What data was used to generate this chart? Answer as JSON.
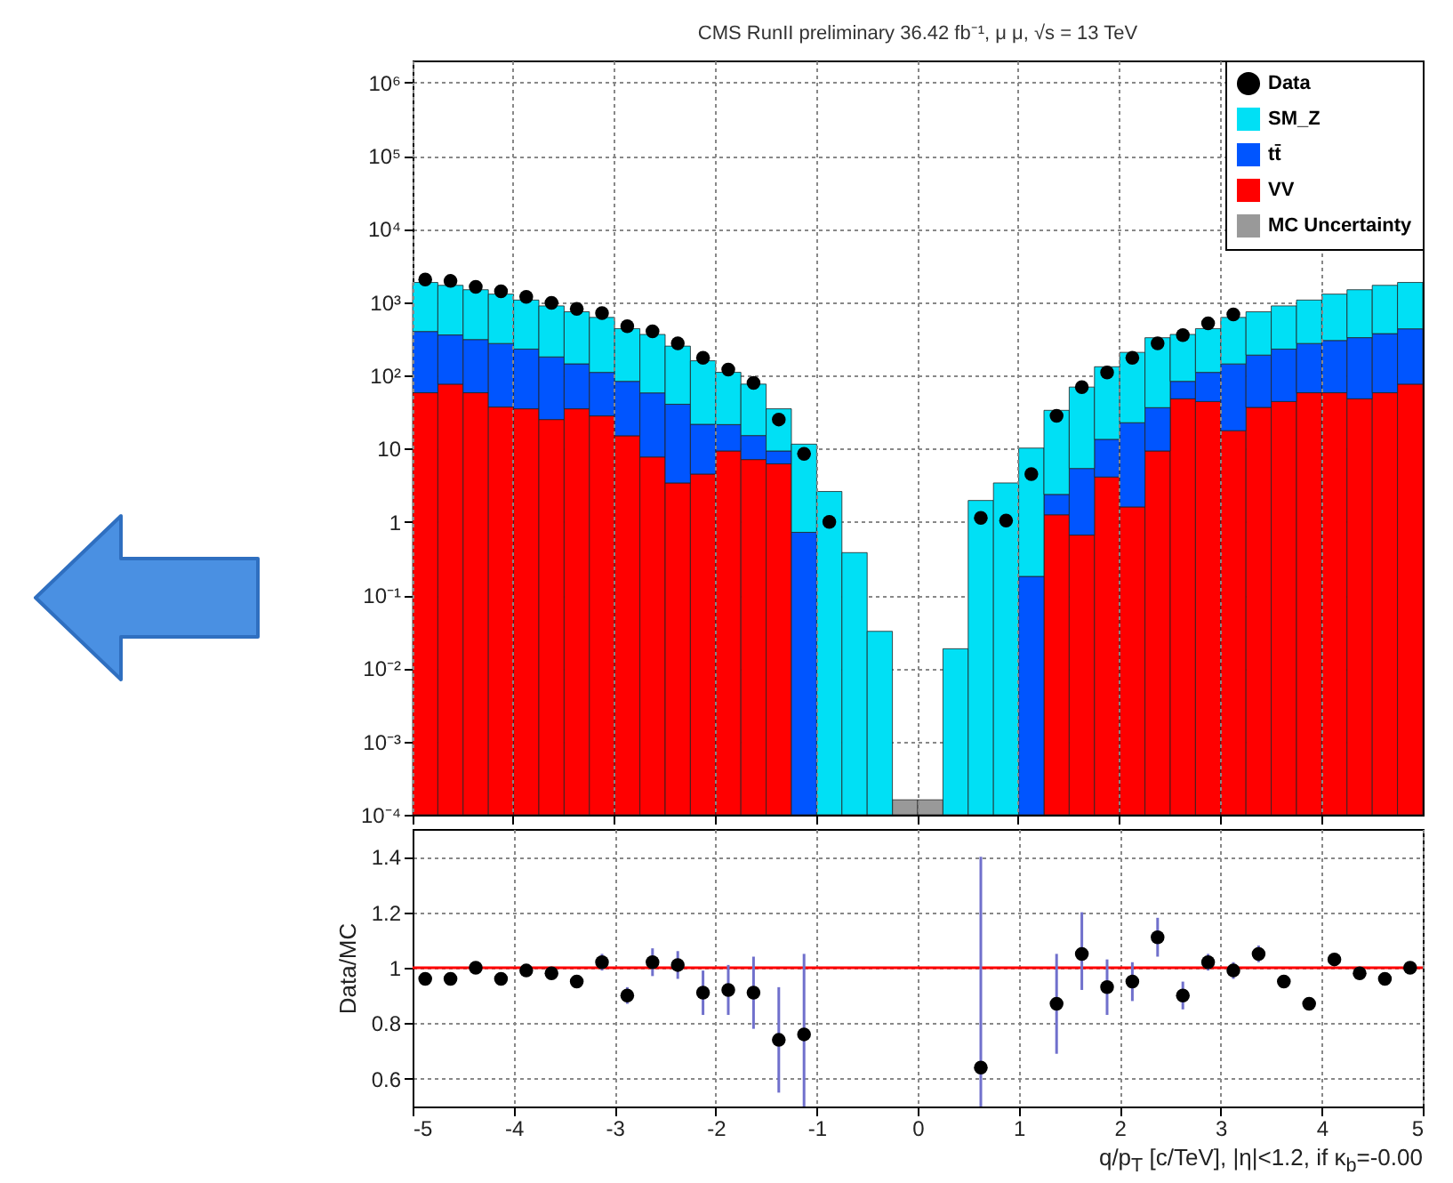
{
  "chart_data": [
    {
      "type": "bar",
      "title": "CMS RunII preliminary 36.42 fb⁻¹, μ μ, √s = 13 TeV",
      "stacked": true,
      "log": true,
      "grid": true,
      "legend": "top right",
      "tick_labels": "y",
      "categories": [
        null,
        null,
        null,
        null,
        null,
        null,
        null,
        null,
        null,
        null,
        null,
        null,
        null,
        null,
        null,
        null,
        null,
        null,
        null,
        null,
        null,
        null,
        null,
        null,
        null,
        null,
        null,
        null,
        null,
        null,
        null,
        null,
        null,
        null,
        null,
        null,
        null,
        null,
        null,
        null
      ],
      "series": [
        {
          "name": "Data",
          "type": "scatter",
          "marker": "circle",
          "color": "#000000",
          "values": [
            2040,
            1950,
            1620,
            1410,
            1180,
            980,
            810,
            710,
            470,
            400,
            275,
            174,
            120,
            79,
            25,
            8.5,
            1.0,
            null,
            null,
            null,
            null,
            null,
            1.13,
            1.04,
            4.5,
            28,
            69,
            110,
            174,
            275,
            355,
            515,
            680,
            null,
            null,
            null,
            null,
            null,
            null,
            null
          ]
        },
        {
          "name": "MC Uncertainty",
          "color": "#999999",
          "values": [
            null,
            null,
            null,
            null,
            null,
            null,
            null,
            null,
            null,
            null,
            null,
            null,
            null,
            null,
            null,
            null,
            null,
            null,
            null,
            0.00016,
            0.00016,
            null,
            null,
            null,
            null,
            null,
            null,
            null,
            null,
            null,
            null,
            null,
            null,
            null,
            null,
            null,
            null,
            null,
            null,
            null
          ]
        },
        {
          "name": "VV",
          "color": "#ff0000",
          "values": [
            58,
            76,
            58,
            37,
            35,
            25,
            35,
            28,
            15,
            7.7,
            3.4,
            4.5,
            9.3,
            7.1,
            6.2,
            null,
            null,
            null,
            null,
            null,
            null,
            null,
            null,
            null,
            null,
            1.25,
            0.66,
            4.1,
            1.6,
            9.3,
            48,
            44,
            17.6,
            36.6,
            44,
            58,
            58,
            48,
            58,
            76
          ]
        },
        {
          "name": "tt̄",
          "color": "#0055ff",
          "values": [
            340,
            281,
            251,
            236,
            194,
            154,
            109,
            82,
            68,
            50,
            37,
            17,
            12,
            8,
            3.1,
            0.72,
            null,
            null,
            null,
            null,
            null,
            null,
            null,
            null,
            0.18,
            1.12,
            4.7,
            9.3,
            21,
            27,
            35,
            66,
            126,
            153,
            185,
            215,
            242,
            280,
            314,
            357
          ]
        },
        {
          "name": "SM_Z",
          "color": "#00e0f5",
          "values": [
            1462,
            1343,
            1171,
            1017,
            841,
            711,
            596,
            510,
            353,
            305,
            211,
            137,
            89,
            61,
            25.7,
            10.8,
            2.6,
            0.38,
            0.032,
            null,
            null,
            0.0185,
            1.96,
            3.4,
            10,
            31,
            64,
            118,
            184,
            291,
            280,
            326,
            476,
            550,
            661,
            797,
            990,
            1152,
            1328,
            1427
          ]
        }
      ],
      "ylim": [
        0.0001,
        2000000
      ],
      "yticks": [
        {
          "value": 0.0001,
          "label": "10⁻⁴"
        },
        {
          "value": 0.001,
          "label": "10⁻³"
        },
        {
          "value": 0.01,
          "label": "10⁻²"
        },
        {
          "value": 0.1,
          "label": "10⁻¹"
        },
        1,
        10,
        {
          "value": 100,
          "label": "10²"
        },
        {
          "value": 1000,
          "label": "10³"
        },
        {
          "value": 10000,
          "label": "10⁴"
        },
        {
          "value": 100000,
          "label": "10⁵"
        },
        {
          "value": 1000000,
          "label": "10⁶"
        }
      ]
    },
    {
      "type": "scatter",
      "xlabel": "q/p$_{T}$ [c/TeV], |η|<1.2, if κ$_{b}$=-0.00",
      "ylabel": "Data/MC",
      "grid": true,
      "series": [
        {
          "marker": "circle",
          "color": "#000000",
          "x": [
            -4.875,
            -4.625,
            -4.375,
            -4.125,
            -3.875,
            -3.625,
            -3.375,
            -3.125,
            -2.875,
            -2.625,
            -2.375,
            -2.125,
            -1.875,
            -1.625,
            -1.375,
            -1.125,
            0.625,
            1.375,
            1.625,
            1.875,
            2.125,
            2.375,
            2.625,
            2.875,
            3.125,
            3.375,
            3.625,
            3.875,
            4.125,
            4.375,
            4.625,
            4.875
          ],
          "values": [
            0.96,
            0.96,
            1.0,
            0.96,
            0.99,
            0.98,
            0.95,
            1.02,
            0.9,
            1.02,
            1.01,
            0.91,
            0.92,
            0.91,
            0.74,
            0.76,
            0.64,
            0.87,
            1.05,
            0.93,
            0.95,
            1.11,
            0.9,
            1.02,
            0.99,
            1.05,
            0.95,
            0.87,
            1.03,
            0.98,
            0.96,
            1.0
          ],
          "errors": [
            null,
            null,
            null,
            null,
            null,
            null,
            null,
            0.03,
            0.03,
            0.05,
            0.05,
            0.08,
            0.09,
            0.13,
            0.19,
            [
              0.5,
              1.05
            ],
            [
              0.5,
              1.4
            ],
            [
              0.69,
              1.05
            ],
            [
              0.92,
              1.2
            ],
            0.1,
            0.07,
            0.07,
            0.05,
            0.03,
            0.03,
            0.03,
            null,
            null,
            null,
            null,
            null,
            null
          ]
        }
      ],
      "ref_lines": [
        {
          "axis": "y",
          "value": 1,
          "color": "#ff0000"
        }
      ],
      "xlim": [
        -5,
        5
      ],
      "xticks": [
        -5,
        -4,
        -3,
        -2,
        -1,
        0,
        1,
        2,
        3,
        4,
        5
      ],
      "ylim": [
        0.5,
        1.5
      ],
      "yticks": [
        0.6,
        0.8,
        1,
        1.2,
        1.4
      ]
    }
  ]
}
